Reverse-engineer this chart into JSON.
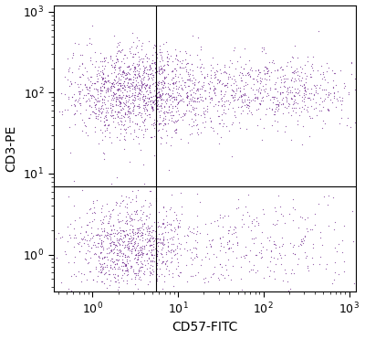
{
  "xlabel": "CD57-FITC",
  "ylabel": "CD3-PE",
  "dot_color": "#6B1F8A",
  "dot_alpha": 0.7,
  "dot_size": 0.8,
  "xlim": [
    0.35,
    1200
  ],
  "ylim": [
    0.35,
    1200
  ],
  "xline": 5.5,
  "yline": 7.0,
  "quadrant_populations": {
    "UL": {
      "n": 1400,
      "x_log_mean": 0.55,
      "x_log_std": 0.45,
      "y_log_mean": 2.0,
      "y_log_std": 0.28
    },
    "UR": {
      "n": 650,
      "x_log_mean": 2.05,
      "x_log_std": 0.55,
      "y_log_mean": 2.02,
      "y_log_std": 0.22
    },
    "LL": {
      "n": 900,
      "x_log_mean": 0.45,
      "x_log_std": 0.35,
      "y_log_mean": 0.1,
      "y_log_std": 0.28
    },
    "LR": {
      "n": 300,
      "x_log_mean": 2.0,
      "x_log_std": 0.55,
      "y_log_mean": 0.1,
      "y_log_std": 0.28
    }
  },
  "background_color": "#ffffff",
  "tick_label_size": 9,
  "axis_label_size": 10,
  "figsize": [
    4.0,
    3.71
  ],
  "dpi": 100
}
